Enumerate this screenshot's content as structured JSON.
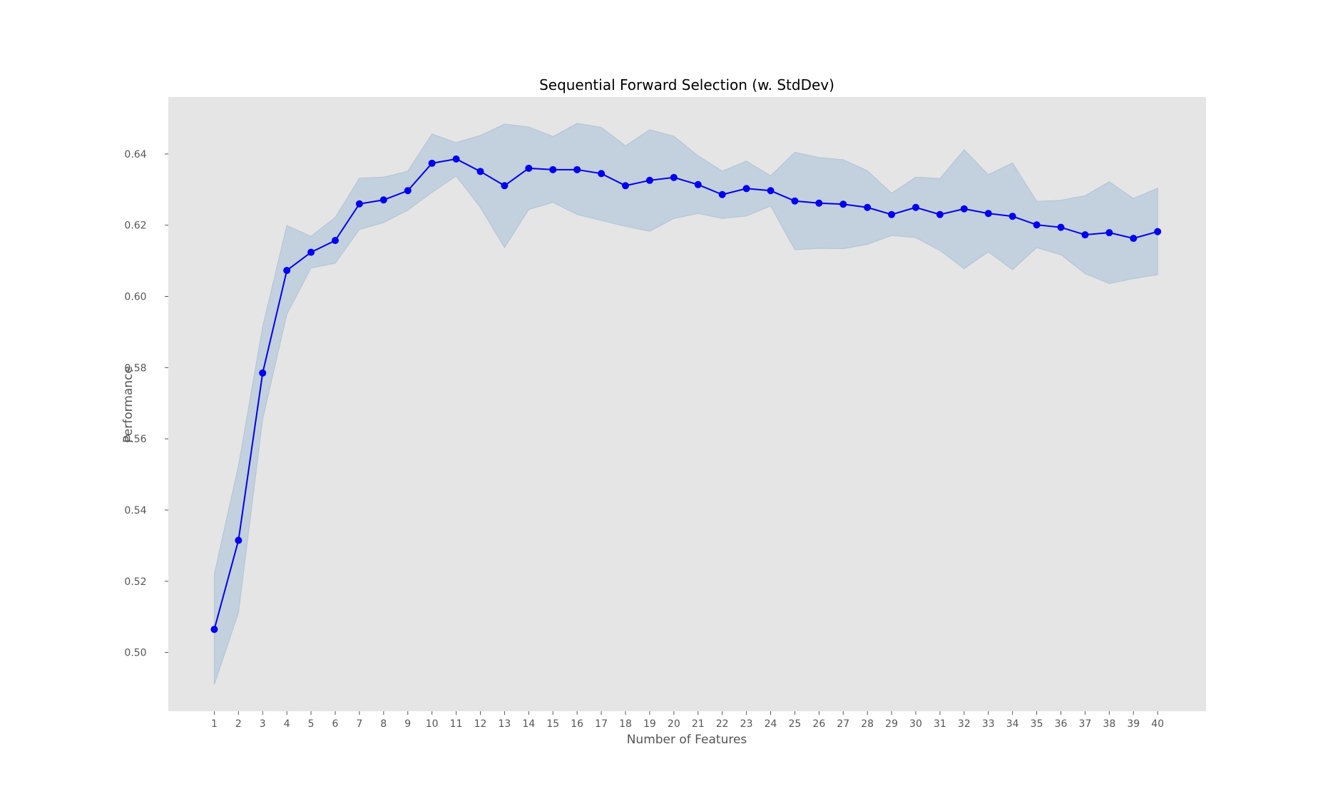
{
  "chart_data": {
    "type": "line",
    "title": "Sequential Forward Selection (w. StdDev)",
    "xlabel": "Number of Features",
    "ylabel": "Performance",
    "x": [
      1,
      2,
      3,
      4,
      5,
      6,
      7,
      8,
      9,
      10,
      11,
      12,
      13,
      14,
      15,
      16,
      17,
      18,
      19,
      20,
      21,
      22,
      23,
      24,
      25,
      26,
      27,
      28,
      29,
      30,
      31,
      32,
      33,
      34,
      35,
      36,
      37,
      38,
      39,
      40
    ],
    "series": [
      {
        "values": [
          0.5065,
          0.5315,
          0.5785,
          0.6073,
          0.6124,
          0.6157,
          0.626,
          0.6271,
          0.6297,
          0.6374,
          0.6386,
          0.6351,
          0.6311,
          0.636,
          0.6356,
          0.6356,
          0.6345,
          0.6311,
          0.6326,
          0.6334,
          0.6314,
          0.6286,
          0.6303,
          0.6297,
          0.6268,
          0.6262,
          0.6259,
          0.625,
          0.623,
          0.625,
          0.623,
          0.6246,
          0.6233,
          0.6225,
          0.6201,
          0.6194,
          0.6173,
          0.6179,
          0.6163,
          0.6182
        ],
        "upper": [
          0.522,
          0.5525,
          0.5915,
          0.6199,
          0.6169,
          0.6222,
          0.6332,
          0.6335,
          0.6352,
          0.6456,
          0.6432,
          0.6452,
          0.6484,
          0.6476,
          0.6449,
          0.6486,
          0.6475,
          0.6423,
          0.6468,
          0.645,
          0.6395,
          0.6352,
          0.638,
          0.6339,
          0.6405,
          0.639,
          0.6384,
          0.6353,
          0.629,
          0.6335,
          0.6331,
          0.6412,
          0.6342,
          0.6375,
          0.6267,
          0.627,
          0.6283,
          0.6322,
          0.6275,
          0.6304
        ],
        "lower": [
          0.491,
          0.5112,
          0.5655,
          0.595,
          0.608,
          0.6093,
          0.6188,
          0.6207,
          0.6242,
          0.6292,
          0.6338,
          0.625,
          0.6137,
          0.6244,
          0.6264,
          0.623,
          0.6213,
          0.6197,
          0.6183,
          0.6219,
          0.6233,
          0.6219,
          0.6226,
          0.6254,
          0.6131,
          0.6135,
          0.6134,
          0.6146,
          0.6171,
          0.6165,
          0.6129,
          0.6078,
          0.6125,
          0.6075,
          0.6137,
          0.6117,
          0.6064,
          0.6036,
          0.605,
          0.6061
        ]
      }
    ],
    "xlim": [
      -0.9,
      42.0
    ],
    "ylim": [
      0.4835,
      0.656
    ],
    "yticks": [
      0.5,
      0.52,
      0.54,
      0.56,
      0.58,
      0.6,
      0.62,
      0.64
    ],
    "ytick_labels": [
      "0.50",
      "0.52",
      "0.54",
      "0.56",
      "0.58",
      "0.60",
      "0.62",
      "0.64"
    ],
    "grid": false,
    "colors": {
      "line": "#0000ee",
      "marker": "#0000ee",
      "band": "#b0c4d8",
      "plot_background": "#e5e5e5"
    }
  }
}
